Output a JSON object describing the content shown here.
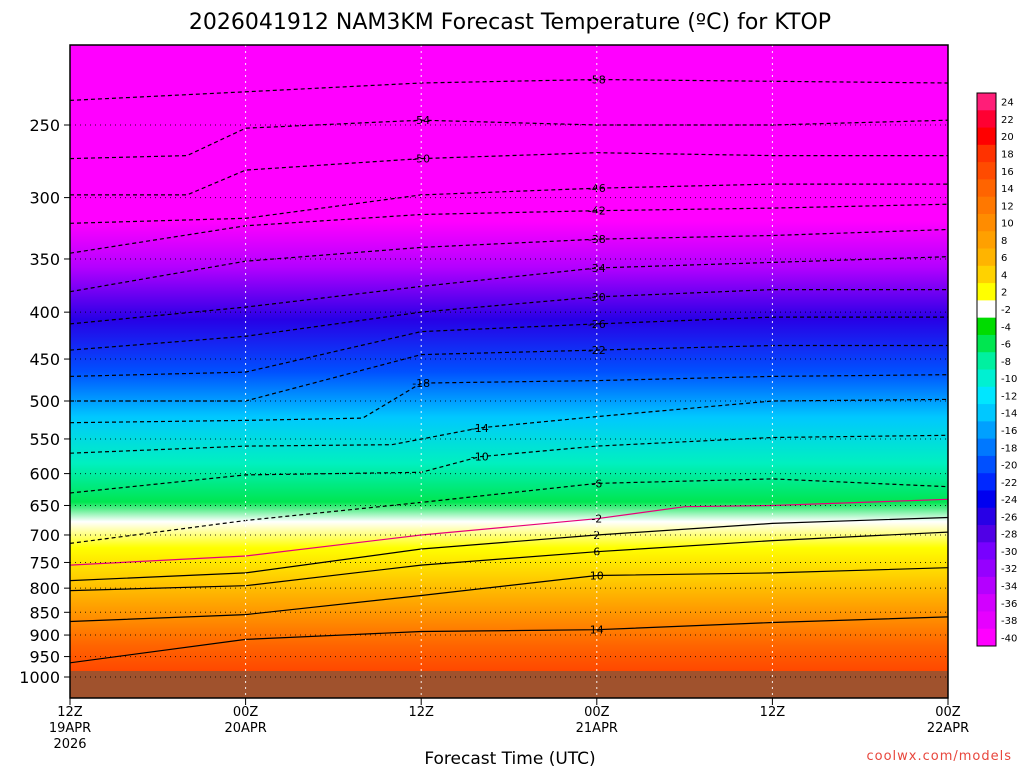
{
  "title": "2026041912 NAM3KM Forecast Temperature (ºC) for KTOP",
  "credit": "coolwx.com/models",
  "chart_data": {
    "type": "heatmap",
    "title": "2026041912 NAM3KM Forecast Temperature (ºC) for KTOP",
    "xlabel": "Forecast Time (UTC)",
    "ylabel": "",
    "x_ticks": [
      {
        "hours": 0,
        "lines": [
          "12Z",
          "19APR",
          "2026"
        ]
      },
      {
        "hours": 12,
        "lines": [
          "00Z",
          "20APR"
        ]
      },
      {
        "hours": 24,
        "lines": [
          "12Z"
        ]
      },
      {
        "hours": 36,
        "lines": [
          "00Z",
          "21APR"
        ]
      },
      {
        "hours": 48,
        "lines": [
          "12Z"
        ]
      },
      {
        "hours": 60,
        "lines": [
          "00Z",
          "22APR"
        ]
      }
    ],
    "xlim": [
      0,
      60
    ],
    "y_pressure_ticks": [
      250,
      300,
      350,
      400,
      450,
      500,
      550,
      600,
      650,
      700,
      750,
      800,
      850,
      900,
      950,
      1000
    ],
    "ylim_hpa": [
      1000,
      200
    ],
    "y_log_scale": true,
    "grid": true,
    "colorbar": {
      "levels": [
        "24",
        "22",
        "20",
        "18",
        "16",
        "14",
        "12",
        "10",
        "8",
        "6",
        "4",
        "2",
        "-2",
        "-4",
        "-6",
        "-8",
        "-10",
        "-12",
        "-14",
        "-16",
        "-18",
        "-20",
        "-22",
        "-24",
        "-26",
        "-28",
        "-30",
        "-32",
        "-34",
        "-36",
        "-38",
        "-40"
      ],
      "colors": [
        "#ff1e78",
        "#ff0032",
        "#ff0000",
        "#ff3200",
        "#ff4b00",
        "#ff6400",
        "#ff7800",
        "#ff8c00",
        "#ffa000",
        "#ffb400",
        "#ffd200",
        "#ffff00",
        "#ffffff",
        "#00dc00",
        "#00e650",
        "#00f0a0",
        "#00f0d2",
        "#00e6ff",
        "#00c8ff",
        "#00a0ff",
        "#0078ff",
        "#0050ff",
        "#0028ff",
        "#0000f0",
        "#2800e6",
        "#5000e6",
        "#7800ff",
        "#9600ff",
        "#b400ff",
        "#d200ff",
        "#e600ff",
        "#ff00ff"
      ]
    },
    "series": [
      {
        "name": "-58",
        "values": [
          [
            0,
            235
          ],
          [
            12,
            230
          ],
          [
            24,
            225
          ],
          [
            36,
            223
          ],
          [
            48,
            224
          ],
          [
            60,
            225
          ]
        ]
      },
      {
        "name": "-54",
        "values": [
          [
            0,
            272
          ],
          [
            8,
            270
          ],
          [
            12,
            252
          ],
          [
            24,
            247
          ],
          [
            36,
            250
          ],
          [
            48,
            250
          ],
          [
            60,
            247
          ]
        ]
      },
      {
        "name": "-50",
        "values": [
          [
            0,
            298
          ],
          [
            8,
            298
          ],
          [
            12,
            280
          ],
          [
            24,
            272
          ],
          [
            36,
            268
          ],
          [
            48,
            270
          ],
          [
            60,
            270
          ]
        ]
      },
      {
        "name": "-46",
        "values": [
          [
            0,
            320
          ],
          [
            12,
            316
          ],
          [
            24,
            298
          ],
          [
            36,
            293
          ],
          [
            48,
            290
          ],
          [
            60,
            290
          ]
        ]
      },
      {
        "name": "-42",
        "values": [
          [
            0,
            345
          ],
          [
            12,
            322
          ],
          [
            24,
            313
          ],
          [
            36,
            310
          ],
          [
            48,
            308
          ],
          [
            60,
            305
          ]
        ]
      },
      {
        "name": "-38",
        "values": [
          [
            0,
            380
          ],
          [
            12,
            352
          ],
          [
            24,
            340
          ],
          [
            36,
            333
          ],
          [
            48,
            330
          ],
          [
            60,
            325
          ]
        ]
      },
      {
        "name": "-34",
        "values": [
          [
            0,
            412
          ],
          [
            12,
            395
          ],
          [
            24,
            375
          ],
          [
            36,
            358
          ],
          [
            48,
            353
          ],
          [
            60,
            348
          ]
        ]
      },
      {
        "name": "-30",
        "values": [
          [
            0,
            440
          ],
          [
            12,
            425
          ],
          [
            24,
            400
          ],
          [
            36,
            385
          ],
          [
            48,
            378
          ],
          [
            60,
            378
          ]
        ]
      },
      {
        "name": "-26",
        "values": [
          [
            0,
            470
          ],
          [
            12,
            465
          ],
          [
            24,
            420
          ],
          [
            36,
            412
          ],
          [
            48,
            405
          ],
          [
            60,
            405
          ]
        ]
      },
      {
        "name": "-22",
        "values": [
          [
            0,
            500
          ],
          [
            12,
            500
          ],
          [
            24,
            445
          ],
          [
            36,
            440
          ],
          [
            48,
            435
          ],
          [
            60,
            435
          ]
        ]
      },
      {
        "name": "-18",
        "values": [
          [
            0,
            528
          ],
          [
            12,
            525
          ],
          [
            20,
            522
          ],
          [
            24,
            478
          ],
          [
            36,
            475
          ],
          [
            48,
            470
          ],
          [
            60,
            468
          ]
        ]
      },
      {
        "name": "-14",
        "values": [
          [
            0,
            570
          ],
          [
            12,
            560
          ],
          [
            22,
            558
          ],
          [
            28,
            535
          ],
          [
            36,
            520
          ],
          [
            48,
            500
          ],
          [
            60,
            498
          ]
        ]
      },
      {
        "name": "-10",
        "values": [
          [
            0,
            630
          ],
          [
            12,
            602
          ],
          [
            24,
            598
          ],
          [
            28,
            575
          ],
          [
            36,
            560
          ],
          [
            48,
            548
          ],
          [
            60,
            545
          ]
        ]
      },
      {
        "name": "-6",
        "values": [
          [
            0,
            715
          ],
          [
            12,
            675
          ],
          [
            24,
            645
          ],
          [
            36,
            615
          ],
          [
            48,
            608
          ],
          [
            60,
            620
          ]
        ]
      },
      {
        "name": "-2",
        "values": [
          [
            0,
            755
          ],
          [
            12,
            738
          ],
          [
            24,
            700
          ],
          [
            36,
            672
          ],
          [
            42,
            652
          ],
          [
            48,
            650
          ],
          [
            60,
            640
          ]
        ]
      },
      {
        "name": "2",
        "values": [
          [
            0,
            785
          ],
          [
            12,
            770
          ],
          [
            24,
            725
          ],
          [
            36,
            700
          ],
          [
            48,
            680
          ],
          [
            60,
            670
          ]
        ]
      },
      {
        "name": "6",
        "values": [
          [
            0,
            805
          ],
          [
            12,
            795
          ],
          [
            24,
            755
          ],
          [
            36,
            730
          ],
          [
            48,
            710
          ],
          [
            60,
            695
          ]
        ]
      },
      {
        "name": "10",
        "values": [
          [
            0,
            870
          ],
          [
            12,
            855
          ],
          [
            24,
            815
          ],
          [
            36,
            775
          ],
          [
            48,
            770
          ],
          [
            60,
            760
          ]
        ]
      },
      {
        "name": "14",
        "values": [
          [
            0,
            965
          ],
          [
            12,
            910
          ],
          [
            24,
            892
          ],
          [
            36,
            888
          ],
          [
            48,
            872
          ],
          [
            60,
            860
          ]
        ]
      }
    ]
  }
}
